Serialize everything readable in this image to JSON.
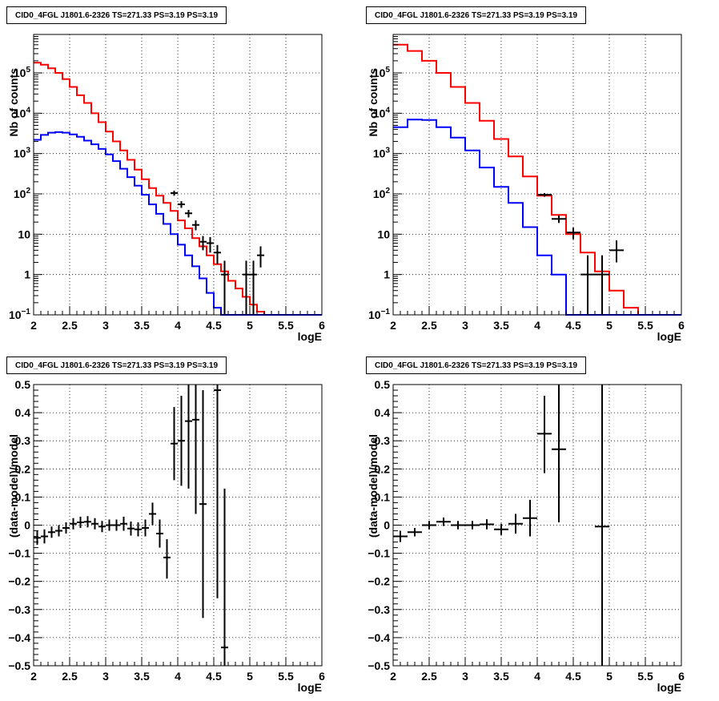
{
  "chart_data": [
    {
      "type": "histogram",
      "title": "CID0_4FGL J1801.6-2326 TS=271.33 PS=3.19 PS=3.19",
      "xlabel": "logE",
      "ylabel": "Nb of counts",
      "yscale": "log",
      "xlim": [
        2,
        6
      ],
      "ylim": [
        0.1,
        900000
      ],
      "xticks": [
        "2",
        "2.5",
        "3",
        "3.5",
        "4",
        "4.5",
        "5",
        "5.5",
        "6"
      ],
      "yticks": [
        {
          "value": 0.1,
          "base": "10",
          "exp": "−1"
        },
        {
          "value": 1,
          "text": "1"
        },
        {
          "value": 10,
          "text": "10"
        },
        {
          "value": 100,
          "base": "10",
          "exp": "2"
        },
        {
          "value": 1000,
          "base": "10",
          "exp": "3"
        },
        {
          "value": 10000,
          "base": "10",
          "exp": "4"
        },
        {
          "value": 100000,
          "base": "10",
          "exp": "5"
        }
      ],
      "grid": true,
      "bin_edges": [
        2.0,
        2.1,
        2.2,
        2.3,
        2.4,
        2.5,
        2.6,
        2.7,
        2.8,
        2.9,
        3.0,
        3.1,
        3.2,
        3.3,
        3.4,
        3.5,
        3.6,
        3.7,
        3.8,
        3.9,
        4.0,
        4.1,
        4.2,
        4.3,
        4.4,
        4.5,
        4.6,
        4.7,
        4.8,
        4.9,
        5.0,
        5.1,
        5.2,
        5.3,
        5.4,
        5.5,
        5.6,
        5.7,
        5.8,
        5.9,
        6.0
      ],
      "series": [
        {
          "color": "#ff0000",
          "values": [
            180000,
            160000,
            130000,
            100000,
            70000,
            45000,
            28000,
            18000,
            10000,
            6000,
            3500,
            2000,
            1200,
            700,
            400,
            230,
            140,
            90,
            60,
            38,
            22,
            14,
            8,
            5,
            3,
            1.8,
            1.2,
            0.7,
            0.45,
            0.28,
            0.18,
            0.12,
            0.1,
            0.1,
            0.1,
            0.1,
            0.1,
            0.1,
            0.1,
            0.1
          ]
        },
        {
          "color": "#0000ff",
          "values": [
            2200,
            2900,
            3300,
            3400,
            3300,
            3000,
            2600,
            2100,
            1700,
            1300,
            950,
            650,
            420,
            260,
            160,
            95,
            55,
            32,
            18,
            10,
            5.5,
            3,
            1.6,
            0.8,
            0.35,
            0.15,
            0.1,
            0.1,
            0.1,
            0.1,
            0.1,
            0.1,
            0.1,
            0.1,
            0.1,
            0.1,
            0.1,
            0.1,
            0.1,
            0.1
          ]
        }
      ],
      "points": [
        {
          "x": 3.95,
          "xlo": 3.9,
          "xhi": 4.0,
          "y": 105,
          "ylo": 90,
          "yhi": 120
        },
        {
          "x": 4.05,
          "xlo": 4.0,
          "xhi": 4.1,
          "y": 55,
          "ylo": 45,
          "yhi": 66
        },
        {
          "x": 4.15,
          "xlo": 4.1,
          "xhi": 4.2,
          "y": 33,
          "ylo": 26,
          "yhi": 40
        },
        {
          "x": 4.25,
          "xlo": 4.2,
          "xhi": 4.3,
          "y": 17,
          "ylo": 12.5,
          "yhi": 22
        },
        {
          "x": 4.35,
          "xlo": 4.3,
          "xhi": 4.4,
          "y": 6.5,
          "ylo": 4,
          "yhi": 9
        },
        {
          "x": 4.45,
          "xlo": 4.4,
          "xhi": 4.5,
          "y": 6,
          "ylo": 3.5,
          "yhi": 8.5
        },
        {
          "x": 4.55,
          "xlo": 4.5,
          "xhi": 4.6,
          "y": 3.5,
          "ylo": 1.8,
          "yhi": 5.4
        },
        {
          "x": 4.65,
          "xlo": 4.6,
          "xhi": 4.7,
          "y": 1,
          "ylo": 0.1,
          "yhi": 2.2
        },
        {
          "x": 4.95,
          "xlo": 4.9,
          "xhi": 5.0,
          "y": 1,
          "ylo": 0.1,
          "yhi": 2.2
        },
        {
          "x": 5.05,
          "xlo": 5.0,
          "xhi": 5.1,
          "y": 1,
          "ylo": 0.1,
          "yhi": 2.2
        },
        {
          "x": 5.15,
          "xlo": 5.1,
          "xhi": 5.2,
          "y": 3,
          "ylo": 1.5,
          "yhi": 5
        }
      ]
    },
    {
      "type": "histogram",
      "title": "CID0_4FGL J1801.6-2326 TS=271.33 PS=3.19 PS=3.19",
      "xlabel": "logE",
      "ylabel": "Nb of counts",
      "yscale": "log",
      "xlim": [
        2,
        6
      ],
      "ylim": [
        0.1,
        900000
      ],
      "xticks": [
        "2",
        "2.5",
        "3",
        "3.5",
        "4",
        "4.5",
        "5",
        "5.5",
        "6"
      ],
      "yticks": [
        {
          "value": 0.1,
          "base": "10",
          "exp": "−1"
        },
        {
          "value": 1,
          "text": "1"
        },
        {
          "value": 10,
          "text": "10"
        },
        {
          "value": 100,
          "base": "10",
          "exp": "2"
        },
        {
          "value": 1000,
          "base": "10",
          "exp": "3"
        },
        {
          "value": 10000,
          "base": "10",
          "exp": "4"
        },
        {
          "value": 100000,
          "base": "10",
          "exp": "5"
        }
      ],
      "grid": true,
      "bin_edges": [
        2.0,
        2.2,
        2.4,
        2.6,
        2.8,
        3.0,
        3.2,
        3.4,
        3.6,
        3.8,
        4.0,
        4.2,
        4.4,
        4.6,
        4.8,
        5.0,
        5.2,
        5.4,
        5.6,
        5.8,
        6.0
      ],
      "series": [
        {
          "color": "#ff0000",
          "values": [
            500000,
            350000,
            200000,
            100000,
            45000,
            18000,
            6500,
            2300,
            850,
            270,
            90,
            30,
            10,
            3.5,
            1.2,
            0.4,
            0.15,
            0.1,
            0.1,
            0.1
          ]
        },
        {
          "color": "#0000ff",
          "values": [
            4500,
            7000,
            6800,
            4500,
            2500,
            1200,
            450,
            150,
            60,
            15,
            3,
            1,
            0.1,
            0.1,
            0.1,
            0.1,
            0.1,
            0.1,
            0.1,
            0.1
          ]
        }
      ],
      "points": [
        {
          "x": 4.1,
          "xlo": 4.0,
          "xhi": 4.2,
          "y": 95,
          "ylo": 85,
          "yhi": 105
        },
        {
          "x": 4.3,
          "xlo": 4.2,
          "xhi": 4.4,
          "y": 24,
          "ylo": 19,
          "yhi": 29
        },
        {
          "x": 4.5,
          "xlo": 4.4,
          "xhi": 4.6,
          "y": 11,
          "ylo": 7.5,
          "yhi": 14.5
        },
        {
          "x": 4.7,
          "xlo": 4.6,
          "xhi": 4.8,
          "y": 1,
          "ylo": 0.1,
          "yhi": 3
        },
        {
          "x": 4.9,
          "xlo": 4.8,
          "xhi": 5.0,
          "y": 1,
          "ylo": 0.1,
          "yhi": 3
        },
        {
          "x": 5.1,
          "xlo": 5.0,
          "xhi": 5.2,
          "y": 4,
          "ylo": 2,
          "yhi": 7
        }
      ]
    },
    {
      "type": "scatter",
      "title": "CID0_4FGL J1801.6-2326 TS=271.33 PS=3.19 PS=3.19",
      "xlabel": "logE",
      "ylabel": "(data-model)/model",
      "xlim": [
        2,
        6
      ],
      "ylim": [
        -0.5,
        0.5
      ],
      "xticks": [
        "2",
        "2.5",
        "3",
        "3.5",
        "4",
        "4.5",
        "5",
        "5.5",
        "6"
      ],
      "yticks": [
        "−0.5",
        "−0.4",
        "−0.3",
        "−0.2",
        "−0.1",
        "0",
        "0.1",
        "0.2",
        "0.3",
        "0.4",
        "0.5"
      ],
      "grid": true,
      "points": [
        {
          "x": 2.05,
          "xlo": 2.0,
          "xhi": 2.1,
          "y": -0.045,
          "ylo": -0.07,
          "yhi": -0.02
        },
        {
          "x": 2.15,
          "xlo": 2.1,
          "xhi": 2.2,
          "y": -0.04,
          "ylo": -0.065,
          "yhi": -0.015
        },
        {
          "x": 2.25,
          "xlo": 2.2,
          "xhi": 2.3,
          "y": -0.025,
          "ylo": -0.045,
          "yhi": -0.005
        },
        {
          "x": 2.35,
          "xlo": 2.3,
          "xhi": 2.4,
          "y": -0.02,
          "ylo": -0.04,
          "yhi": 0.0
        },
        {
          "x": 2.45,
          "xlo": 2.4,
          "xhi": 2.5,
          "y": -0.01,
          "ylo": -0.03,
          "yhi": 0.01
        },
        {
          "x": 2.55,
          "xlo": 2.5,
          "xhi": 2.6,
          "y": 0.005,
          "ylo": -0.015,
          "yhi": 0.025
        },
        {
          "x": 2.65,
          "xlo": 2.6,
          "xhi": 2.7,
          "y": 0.01,
          "ylo": -0.01,
          "yhi": 0.03
        },
        {
          "x": 2.75,
          "xlo": 2.7,
          "xhi": 2.8,
          "y": 0.012,
          "ylo": -0.008,
          "yhi": 0.032
        },
        {
          "x": 2.85,
          "xlo": 2.8,
          "xhi": 2.9,
          "y": 0.005,
          "ylo": -0.015,
          "yhi": 0.025
        },
        {
          "x": 2.95,
          "xlo": 2.9,
          "xhi": 3.0,
          "y": -0.005,
          "ylo": -0.025,
          "yhi": 0.015
        },
        {
          "x": 3.05,
          "xlo": 3.0,
          "xhi": 3.1,
          "y": 0.0,
          "ylo": -0.02,
          "yhi": 0.02
        },
        {
          "x": 3.15,
          "xlo": 3.1,
          "xhi": 3.2,
          "y": 0.0,
          "ylo": -0.02,
          "yhi": 0.02
        },
        {
          "x": 3.25,
          "xlo": 3.2,
          "xhi": 3.3,
          "y": 0.005,
          "ylo": -0.02,
          "yhi": 0.03
        },
        {
          "x": 3.35,
          "xlo": 3.3,
          "xhi": 3.4,
          "y": -0.012,
          "ylo": -0.037,
          "yhi": 0.013
        },
        {
          "x": 3.45,
          "xlo": 3.4,
          "xhi": 3.5,
          "y": -0.015,
          "ylo": -0.04,
          "yhi": 0.01
        },
        {
          "x": 3.55,
          "xlo": 3.5,
          "xhi": 3.6,
          "y": -0.01,
          "ylo": -0.04,
          "yhi": 0.02
        },
        {
          "x": 3.65,
          "xlo": 3.6,
          "xhi": 3.7,
          "y": 0.04,
          "ylo": 0.0,
          "yhi": 0.08
        },
        {
          "x": 3.75,
          "xlo": 3.7,
          "xhi": 3.8,
          "y": -0.03,
          "ylo": -0.08,
          "yhi": 0.02
        },
        {
          "x": 3.85,
          "xlo": 3.8,
          "xhi": 3.9,
          "y": -0.115,
          "ylo": -0.19,
          "yhi": -0.05
        },
        {
          "x": 3.95,
          "xlo": 3.9,
          "xhi": 4.0,
          "y": 0.29,
          "ylo": 0.16,
          "yhi": 0.42
        },
        {
          "x": 4.05,
          "xlo": 4.0,
          "xhi": 4.1,
          "y": 0.3,
          "ylo": 0.14,
          "yhi": 0.46
        },
        {
          "x": 4.15,
          "xlo": 4.1,
          "xhi": 4.2,
          "y": 0.37,
          "ylo": 0.13,
          "yhi": 0.5
        },
        {
          "x": 4.25,
          "xlo": 4.2,
          "xhi": 4.3,
          "y": 0.375,
          "ylo": 0.04,
          "yhi": 0.5
        },
        {
          "x": 4.35,
          "xlo": 4.3,
          "xhi": 4.4,
          "y": 0.075,
          "ylo": -0.33,
          "yhi": 0.48
        },
        {
          "x": 4.55,
          "xlo": 4.5,
          "xhi": 4.6,
          "y": 0.48,
          "ylo": -0.26,
          "yhi": 0.5
        },
        {
          "x": 4.65,
          "xlo": 4.6,
          "xhi": 4.7,
          "y": -0.435,
          "ylo": -0.5,
          "yhi": 0.13
        }
      ]
    },
    {
      "type": "scatter",
      "title": "CID0_4FGL J1801.6-2326 TS=271.33 PS=3.19 PS=3.19",
      "xlabel": "logE",
      "ylabel": "(data-model)/model",
      "xlim": [
        2,
        6
      ],
      "ylim": [
        -0.5,
        0.5
      ],
      "xticks": [
        "2",
        "2.5",
        "3",
        "3.5",
        "4",
        "4.5",
        "5",
        "5.5",
        "6"
      ],
      "yticks": [
        "−0.5",
        "−0.4",
        "−0.3",
        "−0.2",
        "−0.1",
        "0",
        "0.1",
        "0.2",
        "0.3",
        "0.4",
        "0.5"
      ],
      "grid": true,
      "points": [
        {
          "x": 2.1,
          "xlo": 2.0,
          "xhi": 2.2,
          "y": -0.04,
          "ylo": -0.06,
          "yhi": -0.02
        },
        {
          "x": 2.3,
          "xlo": 2.2,
          "xhi": 2.4,
          "y": -0.025,
          "ylo": -0.04,
          "yhi": -0.01
        },
        {
          "x": 2.5,
          "xlo": 2.4,
          "xhi": 2.6,
          "y": 0.0,
          "ylo": -0.015,
          "yhi": 0.015
        },
        {
          "x": 2.7,
          "xlo": 2.6,
          "xhi": 2.8,
          "y": 0.012,
          "ylo": -0.003,
          "yhi": 0.027
        },
        {
          "x": 2.9,
          "xlo": 2.8,
          "xhi": 3.0,
          "y": 0.0,
          "ylo": -0.015,
          "yhi": 0.015
        },
        {
          "x": 3.1,
          "xlo": 3.0,
          "xhi": 3.2,
          "y": 0.0,
          "ylo": -0.015,
          "yhi": 0.015
        },
        {
          "x": 3.3,
          "xlo": 3.2,
          "xhi": 3.4,
          "y": 0.003,
          "ylo": -0.015,
          "yhi": 0.021
        },
        {
          "x": 3.5,
          "xlo": 3.4,
          "xhi": 3.6,
          "y": -0.015,
          "ylo": -0.035,
          "yhi": 0.005
        },
        {
          "x": 3.7,
          "xlo": 3.6,
          "xhi": 3.8,
          "y": 0.005,
          "ylo": -0.03,
          "yhi": 0.04
        },
        {
          "x": 3.9,
          "xlo": 3.8,
          "xhi": 4.0,
          "y": 0.025,
          "ylo": -0.04,
          "yhi": 0.09
        },
        {
          "x": 4.1,
          "xlo": 4.0,
          "xhi": 4.2,
          "y": 0.325,
          "ylo": 0.185,
          "yhi": 0.46
        },
        {
          "x": 4.3,
          "xlo": 4.2,
          "xhi": 4.4,
          "y": 0.27,
          "ylo": 0.01,
          "yhi": 0.5
        },
        {
          "x": 4.9,
          "xlo": 4.8,
          "xhi": 5.0,
          "y": -0.005,
          "ylo": -0.5,
          "yhi": 0.5
        }
      ]
    }
  ]
}
